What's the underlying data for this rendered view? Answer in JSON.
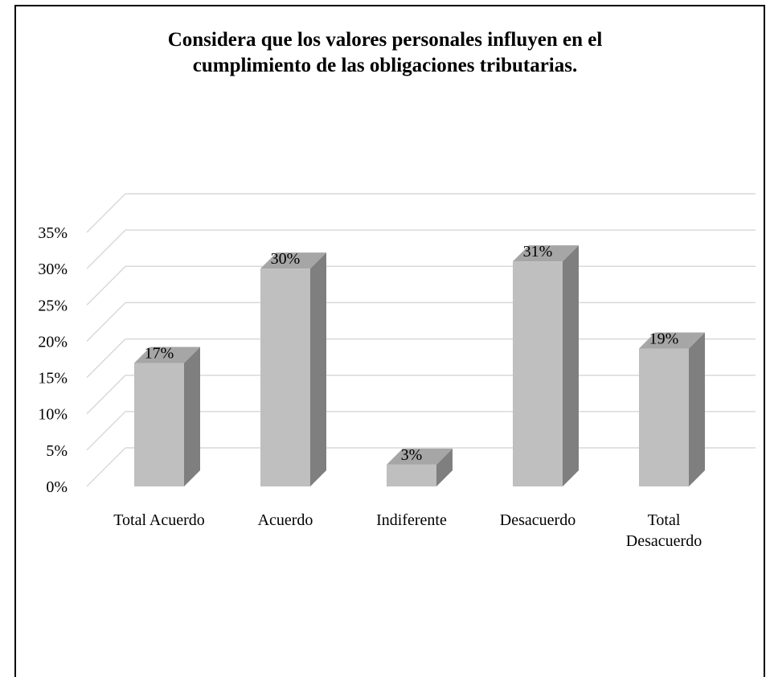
{
  "chart_data": {
    "type": "bar",
    "title_lines": [
      "Considera que los valores personales influyen en el",
      "cumplimiento de las obligaciones tributarias."
    ],
    "categories": [
      "Total Acuerdo",
      "Acuerdo",
      "Indiferente",
      "Desacuerdo",
      "Total Desacuerdo"
    ],
    "category_lines": [
      [
        "Total Acuerdo"
      ],
      [
        "Acuerdo"
      ],
      [
        "Indiferente"
      ],
      [
        "Desacuerdo"
      ],
      [
        "Total",
        "Desacuerdo"
      ]
    ],
    "values": [
      17,
      30,
      3,
      31,
      19
    ],
    "data_labels": [
      "17%",
      "30%",
      "3%",
      "31%",
      "19%"
    ],
    "y_ticks": [
      "0%",
      "5%",
      "10%",
      "15%",
      "20%",
      "25%",
      "30%",
      "35%"
    ],
    "ylim": [
      0,
      35
    ],
    "grid": true,
    "legend": "none",
    "style": "3d-column",
    "colors": {
      "front": "#bfbfbf",
      "side": "#7f7f7f",
      "top": "#a6a6a6",
      "grid": "#d9d9d9"
    }
  }
}
